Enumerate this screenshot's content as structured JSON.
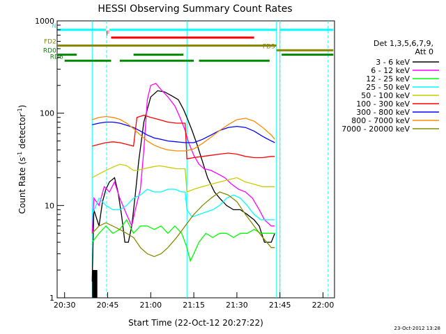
{
  "chart_data": {
    "type": "line",
    "title": "HESSI Observing Summary Count Rates",
    "xlabel": "Start Time (22-Oct-12 20:27:22)",
    "ylabel_main": "Count Rate (s",
    "ylabel_sup1": "-1",
    "ylabel_mid": " detector",
    "ylabel_sup2": "-1",
    "ylabel_end": ")",
    "yscale": "log",
    "xlim": [
      20.4567,
      22.0667
    ],
    "ylim": [
      1,
      1000
    ],
    "x_ticks": [
      {
        "v": 20.5,
        "label": "20:30"
      },
      {
        "v": 20.75,
        "label": "20:45"
      },
      {
        "v": 21.0,
        "label": "21:00"
      },
      {
        "v": 21.25,
        "label": "21:15"
      },
      {
        "v": 21.5,
        "label": "21:30"
      },
      {
        "v": 21.75,
        "label": "21:45"
      },
      {
        "v": 22.0,
        "label": "22:00"
      }
    ],
    "y_ticks": [
      {
        "v": 1,
        "label": "1"
      },
      {
        "v": 10,
        "label": "10"
      },
      {
        "v": 100,
        "label": "100"
      },
      {
        "v": 1000,
        "label": "1000"
      }
    ],
    "legend_header": [
      "Det 1,3,5,6,7,9,",
      "Att 0"
    ],
    "legend_position": "right",
    "series": [
      {
        "name": "3 - 6 keV",
        "color": "#000000",
        "x": [
          20.66,
          20.67,
          20.7,
          20.72,
          20.74,
          20.76,
          20.79,
          20.81,
          20.83,
          20.85,
          20.87,
          20.89,
          20.91,
          20.93,
          20.96,
          21.0,
          21.04,
          21.08,
          21.12,
          21.16,
          21.19,
          21.21,
          21.24,
          21.27,
          21.3,
          21.33,
          21.37,
          21.4,
          21.44,
          21.48,
          21.52,
          21.56,
          21.6,
          21.63,
          21.66,
          21.7,
          21.72
        ],
        "y": [
          1.5,
          9,
          6,
          11,
          15,
          18,
          20,
          14,
          8,
          4,
          4,
          6,
          13,
          30,
          80,
          150,
          175,
          170,
          155,
          140,
          110,
          90,
          65,
          45,
          30,
          20,
          14,
          12,
          10,
          9,
          9,
          8,
          7,
          6,
          4,
          4,
          5
        ]
      },
      {
        "name": "6 - 12 keV",
        "color": "#ff00ff",
        "x": [
          20.66,
          20.67,
          20.7,
          20.73,
          20.76,
          20.79,
          20.82,
          20.86,
          20.89,
          20.91,
          20.94,
          20.96,
          20.98,
          21.0,
          21.03,
          21.06,
          21.1,
          21.14,
          21.17,
          21.2,
          21.22,
          21.25,
          21.28,
          21.31,
          21.35,
          21.39,
          21.43,
          21.47,
          21.51,
          21.55,
          21.59,
          21.63,
          21.66,
          21.7,
          21.72
        ],
        "y": [
          5,
          12,
          10,
          16,
          14,
          18,
          12,
          8,
          6,
          9,
          15,
          40,
          140,
          200,
          210,
          180,
          150,
          120,
          90,
          65,
          48,
          35,
          28,
          25,
          24,
          22,
          20,
          17,
          15,
          14,
          12,
          9,
          7,
          6,
          6
        ]
      },
      {
        "name": "12 - 25 keV",
        "color": "#00ff00",
        "x": [
          20.66,
          20.7,
          20.74,
          20.78,
          20.82,
          20.86,
          20.9,
          20.94,
          20.98,
          21.02,
          21.06,
          21.1,
          21.14,
          21.18,
          21.21,
          21.23,
          21.25,
          21.28,
          21.32,
          21.36,
          21.4,
          21.44,
          21.48,
          21.52,
          21.56,
          21.6,
          21.64,
          21.68,
          21.72
        ],
        "y": [
          4,
          5,
          6,
          5,
          5.5,
          7,
          5,
          6,
          6,
          5.5,
          6,
          5,
          6,
          5,
          3.5,
          2.5,
          3,
          4,
          5,
          4.5,
          5,
          5,
          4.5,
          5,
          5,
          5.5,
          5,
          5,
          5
        ]
      },
      {
        "name": "25 - 50 keV",
        "color": "#00ffff",
        "x": [
          20.66,
          20.7,
          20.74,
          20.78,
          20.82,
          20.86,
          20.9,
          20.94,
          20.98,
          21.02,
          21.06,
          21.1,
          21.14,
          21.18,
          21.2,
          21.21,
          21.24,
          21.28,
          21.32,
          21.36,
          21.4,
          21.44,
          21.48,
          21.52,
          21.56,
          21.6,
          21.64,
          21.68,
          21.72
        ],
        "y": [
          8,
          12,
          10,
          9,
          9,
          10,
          12,
          13,
          15,
          14,
          14,
          15,
          15,
          14,
          14,
          9,
          7.5,
          8,
          8.5,
          9,
          10,
          12,
          13,
          12,
          10,
          8,
          7,
          7,
          7
        ]
      },
      {
        "name": "50 - 100 keV",
        "color": "#cccc00",
        "x": [
          20.66,
          20.7,
          20.74,
          20.78,
          20.82,
          20.86,
          20.9,
          20.92,
          20.96,
          21.0,
          21.05,
          21.1,
          21.15,
          21.2,
          21.21,
          21.25,
          21.3,
          21.35,
          21.4,
          21.45,
          21.5,
          21.55,
          21.6,
          21.65,
          21.7,
          21.72
        ],
        "y": [
          20,
          22,
          24,
          26,
          28,
          27,
          24,
          24,
          25,
          26,
          27,
          26,
          25,
          25,
          14,
          15,
          16,
          17,
          18,
          19,
          20,
          18,
          17,
          16,
          16,
          16
        ]
      },
      {
        "name": "100 - 300 keV",
        "color": "#ff0000",
        "x": [
          20.66,
          20.7,
          20.74,
          20.78,
          20.82,
          20.86,
          20.9,
          20.92,
          20.96,
          21.0,
          21.05,
          21.1,
          21.15,
          21.2,
          21.21,
          21.25,
          21.3,
          21.35,
          21.4,
          21.45,
          21.5,
          21.55,
          21.6,
          21.65,
          21.7,
          21.72
        ],
        "y": [
          44,
          46,
          48,
          49,
          48,
          46,
          44,
          90,
          95,
          90,
          85,
          80,
          78,
          78,
          32,
          33,
          34,
          35,
          36,
          37,
          36,
          34,
          33,
          33,
          34,
          34
        ]
      },
      {
        "name": "300 - 800 keV",
        "color": "#0000ff",
        "x": [
          20.66,
          20.7,
          20.74,
          20.78,
          20.82,
          20.86,
          20.9,
          20.94,
          20.98,
          21.02,
          21.06,
          21.1,
          21.15,
          21.2,
          21.25,
          21.3,
          21.35,
          21.4,
          21.45,
          21.5,
          21.55,
          21.6,
          21.65,
          21.7,
          21.72
        ],
        "y": [
          75,
          78,
          80,
          80,
          78,
          74,
          70,
          64,
          58,
          54,
          52,
          50,
          49,
          48,
          48,
          52,
          58,
          65,
          70,
          72,
          70,
          64,
          56,
          50,
          48
        ]
      },
      {
        "name": "800 - 7000 keV",
        "color": "#ff8800",
        "x": [
          20.66,
          20.7,
          20.74,
          20.78,
          20.82,
          20.86,
          20.9,
          20.94,
          20.98,
          21.02,
          21.06,
          21.1,
          21.15,
          21.2,
          21.25,
          21.3,
          21.35,
          21.4,
          21.45,
          21.5,
          21.55,
          21.6,
          21.65,
          21.7,
          21.72
        ],
        "y": [
          85,
          90,
          92,
          90,
          86,
          78,
          68,
          58,
          50,
          45,
          42,
          40,
          39,
          39,
          41,
          47,
          55,
          65,
          75,
          85,
          88,
          82,
          70,
          58,
          52
        ]
      },
      {
        "name": "7000 - 20000 keV",
        "color": "#888800",
        "x": [
          20.66,
          20.7,
          20.74,
          20.78,
          20.82,
          20.86,
          20.9,
          20.94,
          20.98,
          21.02,
          21.06,
          21.1,
          21.15,
          21.2,
          21.25,
          21.3,
          21.35,
          21.4,
          21.45,
          21.5,
          21.55,
          21.6,
          21.65,
          21.7,
          21.72
        ],
        "y": [
          5,
          6,
          6.5,
          6,
          5.5,
          5,
          4.5,
          3.5,
          3,
          2.8,
          3,
          3.5,
          4.5,
          6,
          8,
          10,
          12,
          14,
          13,
          11,
          8,
          6,
          4.5,
          3.5,
          3.5
        ]
      }
    ],
    "status_bars": [
      {
        "label": "N",
        "color": "#00ffff",
        "y": 800,
        "segments": [
          [
            20.46,
            20.74
          ],
          [
            20.76,
            21.73
          ],
          [
            21.75,
            22.06
          ]
        ]
      },
      {
        "label": "F",
        "color": "#ff0000",
        "y": 660,
        "segments": [
          [
            20.77,
            21.6
          ]
        ]
      },
      {
        "label": "FD2",
        "color": "#888800",
        "y": 540,
        "segments": [
          [
            20.46,
            21.73
          ]
        ]
      },
      {
        "label": "FD3",
        "color": "#888800",
        "y": 480,
        "segments": [
          [
            21.73,
            22.06
          ]
        ]
      },
      {
        "label": "RD0",
        "color": "#008800",
        "y": 430,
        "segments": [
          [
            20.46,
            20.57
          ],
          [
            20.9,
            21.19
          ],
          [
            21.76,
            22.06
          ]
        ]
      },
      {
        "label": "RD6",
        "color": "#008800",
        "y": 370,
        "segments": [
          [
            20.5,
            20.77
          ],
          [
            20.82,
            21.25
          ],
          [
            21.28,
            21.69
          ]
        ]
      }
    ],
    "timestamp": "23-Oct-2012 13:28"
  }
}
